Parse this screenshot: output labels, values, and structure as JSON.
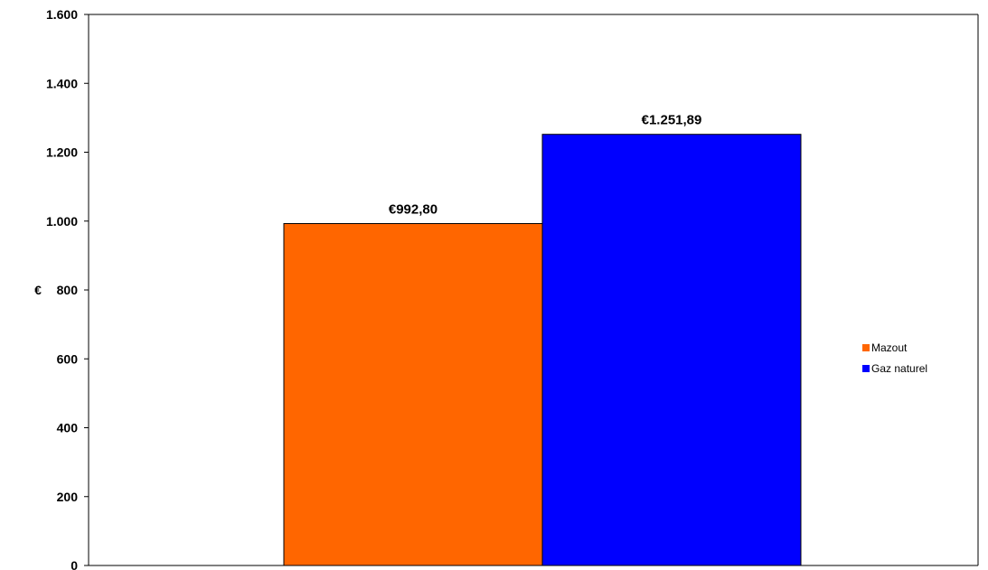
{
  "chart_data": {
    "type": "bar",
    "title": "",
    "xlabel": "",
    "ylabel": "€",
    "ylim": [
      0,
      1600
    ],
    "yticks": [
      0,
      200,
      400,
      600,
      800,
      1000,
      1200,
      1400,
      1600
    ],
    "ytick_labels": [
      "0",
      "200",
      "400",
      "600",
      "800",
      "1.000",
      "1.200",
      "1.400",
      "1.600"
    ],
    "grid": false,
    "legend_position": "right",
    "series": [
      {
        "name": "Mazout",
        "value": 992.8,
        "label": "€992,80",
        "color": "#FF6600"
      },
      {
        "name": "Gaz naturel",
        "value": 1251.89,
        "label": "€1.251,89",
        "color": "#0000FF"
      }
    ]
  }
}
